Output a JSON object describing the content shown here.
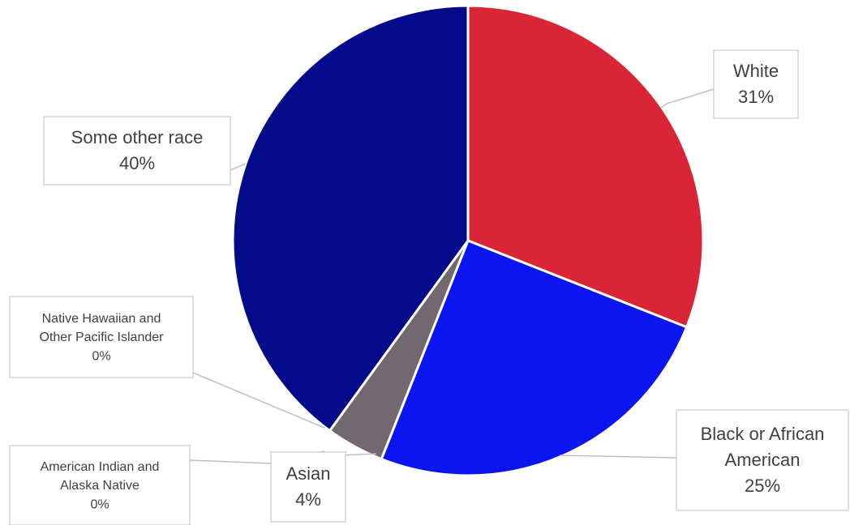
{
  "chart_data": {
    "type": "pie",
    "title": "",
    "legend": "none",
    "slices": [
      {
        "name": "White",
        "value": 31,
        "label": "31%",
        "color": "#da2536"
      },
      {
        "name": "Black or African American",
        "value": 25,
        "label": "25%",
        "color": "#0a15f0"
      },
      {
        "name": "Asian",
        "value": 4,
        "label": "4%",
        "color": "#726870"
      },
      {
        "name": "American Indian and Alaska Native",
        "value": 0,
        "label": "0%",
        "color": "#5b5b5b"
      },
      {
        "name": "Native Hawaiian and Other Pacific Islander",
        "value": 0,
        "label": "0%",
        "color": "#7f7f7f"
      },
      {
        "name": "Some other race",
        "value": 40,
        "label": "40%",
        "color": "#040b8a"
      }
    ]
  }
}
